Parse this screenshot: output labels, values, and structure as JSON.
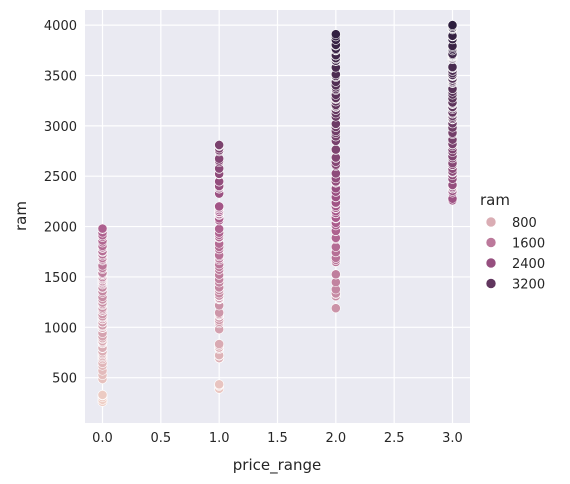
{
  "chart_data": {
    "type": "scatter",
    "xlabel": "price_range",
    "ylabel": "ram",
    "xlim": [
      -0.15,
      3.15
    ],
    "ylim": [
      50,
      4150
    ],
    "x_ticks": [
      "0.0",
      "0.5",
      "1.0",
      "1.5",
      "2.0",
      "2.5",
      "3.0"
    ],
    "x_tick_values": [
      0,
      0.5,
      1,
      1.5,
      2,
      2.5,
      3
    ],
    "y_ticks": [
      "500",
      "1000",
      "1500",
      "2000",
      "2500",
      "3000",
      "3500",
      "4000"
    ],
    "y_tick_values": [
      500,
      1000,
      1500,
      2000,
      2500,
      3000,
      3500,
      4000
    ],
    "grid": true,
    "legend": {
      "title": "ram",
      "placement": "right",
      "entries": [
        {
          "label": "800",
          "value": 800
        },
        {
          "label": "1600",
          "value": 1600
        },
        {
          "label": "2400",
          "value": 2400
        },
        {
          "label": "3200",
          "value": 3200
        }
      ]
    },
    "hue": {
      "variable": "ram",
      "range": [
        250,
        4000
      ],
      "color_low": "#efd0c6",
      "color_mid": "#a8578a",
      "color_high": "#2d1e3e"
    },
    "groups": [
      {
        "x": 0,
        "y_min": 260,
        "y_max": 1980
      },
      {
        "x": 1,
        "y_min": 390,
        "y_max": 2810
      },
      {
        "x": 2,
        "y_min": 1190,
        "y_max": 3910
      },
      {
        "x": 3,
        "y_min": 2260,
        "y_max": 4000
      }
    ],
    "points_per_group": 90
  },
  "colors": {
    "plot_background": "#eaeaf2",
    "grid": "#ffffff",
    "text": "#262626"
  }
}
